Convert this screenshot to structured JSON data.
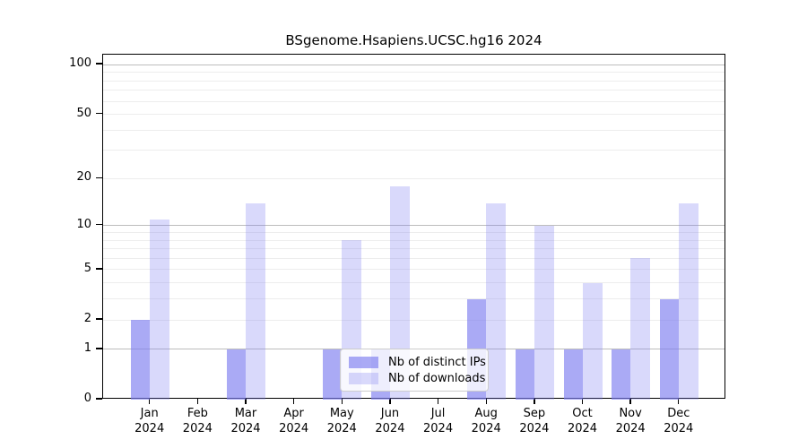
{
  "title": "BSgenome.Hsapiens.UCSC.hg16 2024",
  "legend": {
    "items": [
      {
        "label": "Nb of distinct IPs",
        "key": "ips"
      },
      {
        "label": "Nb of downloads",
        "key": "downloads"
      }
    ]
  },
  "colors": {
    "bar_ips": "rgba(124,124,240,0.65)",
    "bar_downloads": "rgba(124,124,240,0.29)",
    "bar_ips_flat": "#aaaaf4",
    "bar_downloads_flat": "#dadaf9",
    "grid_major": "rgba(0,0,0,0.26)",
    "grid_minor": "rgba(0,0,0,0.07)",
    "axis": "#000000"
  },
  "chart_data": {
    "type": "bar",
    "title": "BSgenome.Hsapiens.UCSC.hg16 2024",
    "categories": [
      "Jan 2024",
      "Feb 2024",
      "Mar 2024",
      "Apr 2024",
      "May 2024",
      "Jun 2024",
      "Jul 2024",
      "Aug 2024",
      "Sep 2024",
      "Oct 2024",
      "Nov 2024",
      "Dec 2024"
    ],
    "series": [
      {
        "name": "Nb of distinct IPs",
        "values": [
          2,
          0,
          1,
          0,
          1,
          1,
          0,
          3,
          1,
          1,
          1,
          3
        ]
      },
      {
        "name": "Nb of downloads",
        "values": [
          11,
          0,
          14,
          0,
          8,
          18,
          0,
          14,
          10,
          4,
          6,
          14
        ]
      }
    ],
    "yticks": [
      0,
      1,
      2,
      5,
      10,
      20,
      50,
      100
    ],
    "yscale": "log1p",
    "ylim": [
      0,
      115
    ],
    "grid": "horizontal",
    "grid_major_at": [
      1,
      10,
      100
    ],
    "grid_minor_at": [
      2,
      3,
      4,
      5,
      6,
      7,
      8,
      9,
      20,
      30,
      40,
      50,
      60,
      70,
      80,
      90
    ],
    "legend_position": "lower center (inside plot)"
  }
}
